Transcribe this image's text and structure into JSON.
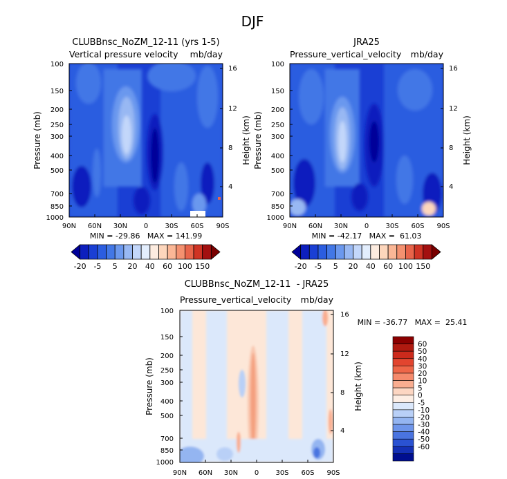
{
  "page_title": "DJF",
  "chart_data": [
    {
      "type": "heatmap",
      "title": "CLUBBnsc_NoZM_12-11 (yrs 1-5)",
      "subtitle_left": "Vertical pressure velocity",
      "subtitle_right": "mb/day",
      "ylabel": "Pressure (mb)",
      "y2label": "Height (km)",
      "x_ticks": [
        "90N",
        "60N",
        "30N",
        "0",
        "30S",
        "60S",
        "90S"
      ],
      "y_ticks": [
        "100",
        "150",
        "200",
        "250",
        "300",
        "400",
        "500",
        "700",
        "850",
        "1000"
      ],
      "y2_ticks": [
        "16",
        "12",
        "8",
        "4"
      ],
      "stats": "MIN = -29.86   MAX = 141.99",
      "colorbar_labels": [
        "-20",
        "-5",
        "5",
        "20",
        "40",
        "60",
        "100",
        "150"
      ],
      "colorbar_colors": [
        "#000099",
        "#0d1fbe",
        "#1a3fd4",
        "#2b5de0",
        "#4277e6",
        "#6b98ee",
        "#98b8f3",
        "#c3d7fa",
        "#e3eefd",
        "#fdece0",
        "#fdd6bc",
        "#fbb796",
        "#f49170",
        "#e8644a",
        "#cf3324",
        "#a31010",
        "#790000"
      ],
      "cbar_lo": "#1140d0",
      "cbar_hi": "#f28b6a",
      "bg_color": "#1a3fd4"
    },
    {
      "type": "heatmap",
      "title": "JRA25",
      "subtitle_left": "Pressure_vertical_velocity",
      "subtitle_right": "mb/day",
      "ylabel": "Pressure (mb)",
      "y2label": "Height (km)",
      "x_ticks": [
        "90N",
        "60N",
        "30N",
        "0",
        "30S",
        "60S",
        "90S"
      ],
      "y_ticks": [
        "100",
        "150",
        "200",
        "250",
        "300",
        "400",
        "500",
        "700",
        "850",
        "1000"
      ],
      "y2_ticks": [
        "16",
        "12",
        "8",
        "4"
      ],
      "stats": "MIN = -42.17   MAX =  61.03",
      "colorbar_labels": [
        "-20",
        "-5",
        "5",
        "20",
        "40",
        "60",
        "100",
        "150"
      ],
      "colorbar_colors": [
        "#000099",
        "#0d1fbe",
        "#1a3fd4",
        "#2b5de0",
        "#4277e6",
        "#6b98ee",
        "#98b8f3",
        "#c3d7fa",
        "#e3eefd",
        "#fdece0",
        "#fdd6bc",
        "#fbb796",
        "#f49170",
        "#e8644a",
        "#cf3324",
        "#a31010",
        "#790000"
      ],
      "bg_color": "#1a3fd4"
    },
    {
      "type": "heatmap",
      "title": "CLUBBnsc_NoZM_12-11  - JRA25",
      "subtitle_left": "Pressure_vertical_velocity",
      "subtitle_right": "mb/day",
      "ylabel": "Pressure (mb)",
      "y2label": "Height (km)",
      "x_ticks": [
        "90N",
        "60N",
        "30N",
        "0",
        "30S",
        "60S",
        "90S"
      ],
      "y_ticks": [
        "100",
        "150",
        "200",
        "250",
        "300",
        "400",
        "500",
        "700",
        "850",
        "1000"
      ],
      "y2_ticks": [
        "16",
        "12",
        "8",
        "4"
      ],
      "stats": "MIN = -36.77   MAX =  25.41",
      "colorbar_labels": [
        "60",
        "50",
        "40",
        "30",
        "20",
        "10",
        "5",
        "0",
        "-5",
        "-10",
        "-20",
        "-30",
        "-40",
        "-50",
        "-60"
      ],
      "colorbar_colors": [
        "#8b0000",
        "#b01a10",
        "#cc2a1c",
        "#e2452f",
        "#ee6648",
        "#f58a6c",
        "#f9ad90",
        "#fcd6c2",
        "#fdeee4",
        "#dbe8fb",
        "#b9d0f7",
        "#94b5f1",
        "#6e95ea",
        "#4a74e0",
        "#2a52d2",
        "#1430b5",
        "#000e8f"
      ],
      "bg_color": "#fde7d8"
    }
  ]
}
